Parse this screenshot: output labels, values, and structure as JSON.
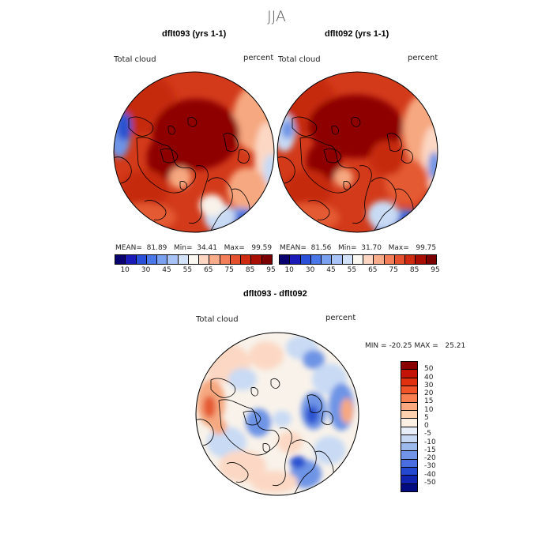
{
  "season": "JJA",
  "panel_left": {
    "title": "dflt093 (yrs 1-1)",
    "variable": "Total cloud",
    "units": "percent",
    "mean_label": "MEAN=",
    "mean": "81.89",
    "min_label": "Min=",
    "min": "34.41",
    "max_label": "Max=",
    "max": "99.59"
  },
  "panel_right": {
    "title": "dflt092 (yrs 1-1)",
    "variable": "Total cloud",
    "units": "percent",
    "mean_label": "MEAN=",
    "mean": "81.56",
    "min_label": "Min=",
    "min": "31.70",
    "max_label": "Max=",
    "max": "99.75"
  },
  "panel_diff": {
    "title": "dflt093 - dflt092",
    "variable": "Total cloud",
    "units": "percent",
    "min_label": "MIN =",
    "min": "-20.25",
    "max_label": "MAX =",
    "max": "25.21"
  },
  "abs_colorbar": {
    "colors": [
      "#08006e",
      "#1a1ab8",
      "#2a4fd8",
      "#4a78e8",
      "#7aa0f0",
      "#a8c4f6",
      "#d2e2fa",
      "#faf8f0",
      "#fcd6c0",
      "#f8ac8a",
      "#f27e5a",
      "#e5502f",
      "#cf2a12",
      "#a80e02",
      "#7a0000"
    ],
    "tick_labels": [
      "10",
      "30",
      "45",
      "55",
      "65",
      "75",
      "85",
      "95"
    ]
  },
  "diff_colorbar": {
    "colors": [
      "#8a0000",
      "#c41406",
      "#e03010",
      "#f05428",
      "#f88050",
      "#fca880",
      "#fdd0b0",
      "#fcefe4",
      "#e8eef8",
      "#c6d8f4",
      "#9cbaee",
      "#7294e8",
      "#4a6ee0",
      "#2448d0",
      "#1024b0",
      "#040a80"
    ],
    "labels": [
      "50",
      "40",
      "30",
      "20",
      "15",
      "10",
      "5",
      "0",
      "-5",
      "-10",
      "-15",
      "-20",
      "-30",
      "-40",
      "-50"
    ]
  },
  "map_colors": {
    "deep_red": "#8e0000",
    "red": "#c62a10",
    "orange_red": "#e45a30",
    "light_orange": "#f6a880",
    "peach": "#fcd8c4",
    "cream": "#f8f2ea",
    "light_blue": "#c8daf4",
    "blue": "#6e94e6",
    "dark_blue": "#2a52d0"
  }
}
